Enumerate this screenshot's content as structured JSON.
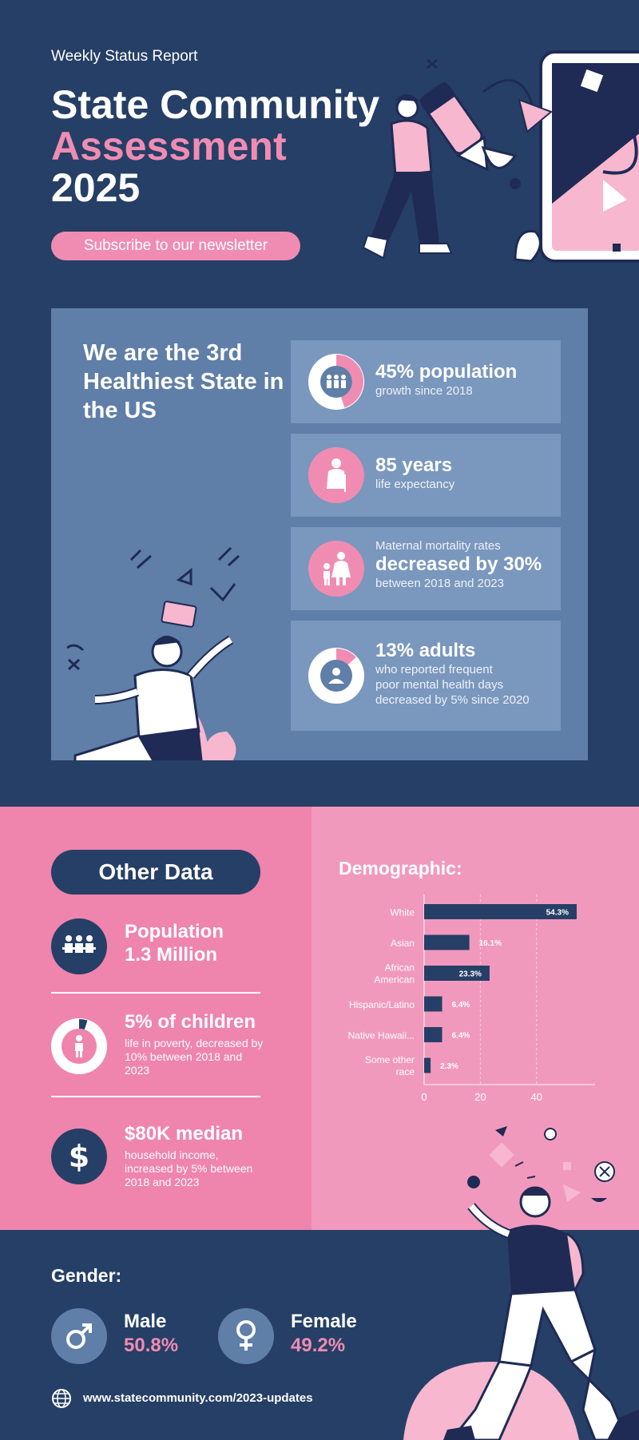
{
  "header": {
    "kicker": "Weekly Status Report",
    "title_line1": "State Community",
    "title_line2": "Assessment",
    "title_line3": "2025",
    "subscribe_label": "Subscribe to our newsletter"
  },
  "health": {
    "title": "We are the 3rd Healthiest State in the US",
    "stats": [
      {
        "big": "45% population",
        "small": "growth since 2018",
        "icon": "people-group-icon",
        "donut_percent": 45
      },
      {
        "big": "85 years",
        "small": "life expectancy",
        "icon": "elderly-person-icon"
      },
      {
        "pre": "Maternal mortality rates",
        "big": "decreased by 30%",
        "small": "between 2018 and 2023",
        "icon": "mother-child-icon"
      },
      {
        "big": "13% adults",
        "small1": "who reported frequent",
        "small2": "poor mental health days",
        "small3": "decreased by 5% since 2020",
        "icon": "person-icon",
        "donut_percent": 13
      }
    ]
  },
  "other_data": {
    "title": "Other Data",
    "items": [
      {
        "big1": "Population",
        "big2": "1.3 Million",
        "icon": "people-group-icon"
      },
      {
        "big1": "5% of children",
        "small": "life in poverty, decreased by 10% between 2018 and 2023",
        "icon": "child-icon",
        "donut_percent": 5
      },
      {
        "big1": "$80K median",
        "small": "household income, increased by 5% between 2018 and 2023",
        "icon": "dollar-icon"
      }
    ]
  },
  "demographic": {
    "title": "Demographic:"
  },
  "chart_data": {
    "type": "bar",
    "orientation": "horizontal",
    "categories": [
      "White",
      "Asian",
      "African American",
      "Hispanic/Latino",
      "Native Hawaii...",
      "Some other race"
    ],
    "values": [
      54.3,
      16.1,
      23.3,
      6.4,
      6.4,
      2.3
    ],
    "value_labels": [
      "54.3%",
      "16.1%",
      "23.3%",
      "6.4%",
      "6.4%",
      "2.3%"
    ],
    "xticks": [
      "0",
      "20",
      "40"
    ],
    "xlim": [
      0,
      58
    ],
    "grid": true,
    "bar_color": "#263f66"
  },
  "gender": {
    "title": "Gender:",
    "male_label": "Male",
    "male_value": "50.8%",
    "female_label": "Female",
    "female_value": "49.2%"
  },
  "footer": {
    "url": "www.statecommunity.com/2023-updates"
  },
  "colors": {
    "navy": "#263f66",
    "pink": "#f08cb2",
    "panel_blue": "#5f7ea8"
  }
}
